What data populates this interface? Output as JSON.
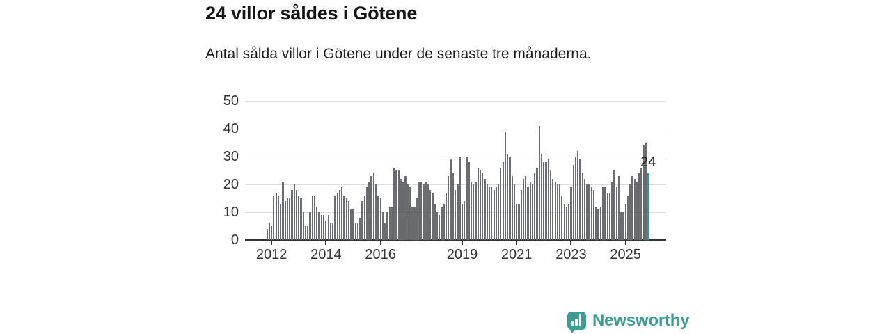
{
  "title": "24 villor såldes i Götene",
  "subtitle": "Antal sålda villor i Götene under de senaste tre månaderna.",
  "chart_data": {
    "type": "bar",
    "title": "24 villor såldes i Götene",
    "subtitle": "Antal sålda villor i Götene under de senaste tre månaderna.",
    "ylabel": "",
    "xlabel": "",
    "ylim": [
      0,
      50
    ],
    "yticks": [
      0,
      10,
      20,
      30,
      40,
      50
    ],
    "grid": true,
    "x_tick_labels": [
      "2012",
      "2014",
      "2016",
      "2019",
      "2021",
      "2023",
      "2025"
    ],
    "x_tick_indices": [
      2,
      26,
      50,
      86,
      110,
      134,
      158
    ],
    "values": [
      4,
      6,
      5,
      16,
      17,
      16,
      13,
      21,
      14,
      15,
      15,
      18,
      20,
      18,
      16,
      15,
      10,
      5,
      5,
      10,
      16,
      16,
      12,
      10,
      9,
      9,
      7,
      9,
      6,
      6,
      16,
      17,
      18,
      19,
      16,
      15,
      14,
      11,
      11,
      6,
      6,
      8,
      14,
      16,
      19,
      21,
      23,
      24,
      20,
      16,
      15,
      10,
      6,
      10,
      12,
      12,
      26,
      25,
      25,
      22,
      21,
      23,
      20,
      19,
      12,
      12,
      15,
      21,
      21,
      20,
      21,
      20,
      18,
      17,
      13,
      10,
      9,
      12,
      13,
      17,
      23,
      29,
      24,
      18,
      20,
      30,
      13,
      14,
      30,
      28,
      21,
      20,
      21,
      26,
      25,
      24,
      22,
      20,
      19,
      19,
      18,
      19,
      20,
      26,
      28,
      39,
      31,
      30,
      23,
      20,
      13,
      13,
      18,
      22,
      23,
      19,
      21,
      20,
      24,
      26,
      41,
      31,
      28,
      28,
      29,
      25,
      22,
      21,
      20,
      20,
      16,
      13,
      12,
      13,
      19,
      27,
      30,
      32,
      29,
      24,
      22,
      20,
      20,
      19,
      18,
      12,
      11,
      12,
      19,
      19,
      17,
      17,
      21,
      25,
      19,
      23,
      10,
      10,
      13,
      16,
      20,
      23,
      22,
      21,
      24,
      26,
      34,
      35,
      24
    ],
    "highlight_last_bar": true,
    "last_value_label": "24",
    "bar_color": "#6b6b72",
    "highlight_color": "#16a3a3",
    "grid_color": "#dcdcdc",
    "axis_color": "#333333"
  },
  "logo": {
    "text": "Newsworthy",
    "color": "#3b9e93",
    "icon": "newsworthy-speech-bubble-chart-icon"
  }
}
